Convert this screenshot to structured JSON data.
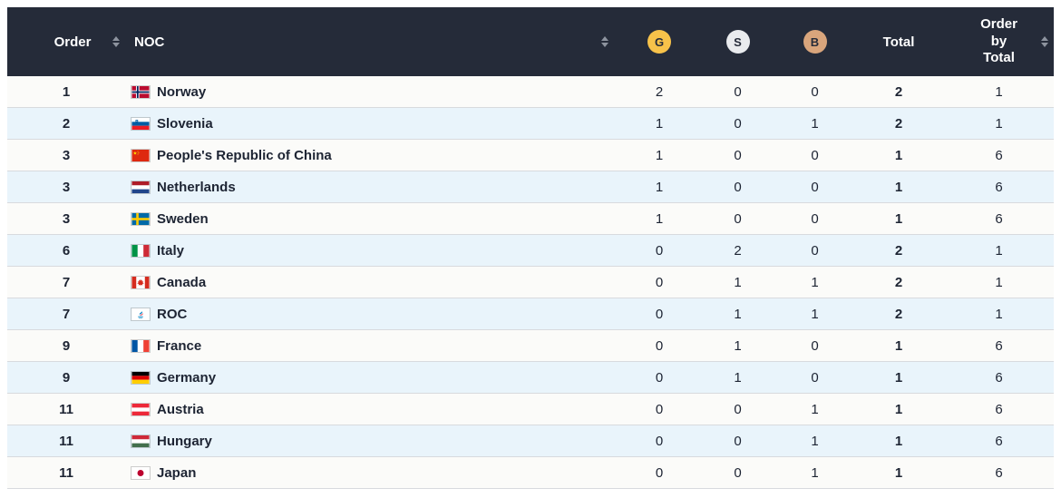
{
  "header": {
    "order": "Order",
    "noc": "NOC",
    "gold_badge": "G",
    "silver_badge": "S",
    "bronze_badge": "B",
    "total": "Total",
    "order_by_total": "Order by Total"
  },
  "colors": {
    "header_bg": "#252b39",
    "gold": "#f7c24a",
    "silver": "#e9ebee",
    "bronze": "#d9a57c",
    "row_alt": "#e9f4fb"
  },
  "rows": [
    {
      "order": "1",
      "noc": "Norway",
      "flag": "norway",
      "gold": "2",
      "silver": "0",
      "bronze": "0",
      "total": "2",
      "order_by_total": "1"
    },
    {
      "order": "2",
      "noc": "Slovenia",
      "flag": "slovenia",
      "gold": "1",
      "silver": "0",
      "bronze": "1",
      "total": "2",
      "order_by_total": "1"
    },
    {
      "order": "3",
      "noc": "People's Republic of China",
      "flag": "china",
      "gold": "1",
      "silver": "0",
      "bronze": "0",
      "total": "1",
      "order_by_total": "6"
    },
    {
      "order": "3",
      "noc": "Netherlands",
      "flag": "netherlands",
      "gold": "1",
      "silver": "0",
      "bronze": "0",
      "total": "1",
      "order_by_total": "6"
    },
    {
      "order": "3",
      "noc": "Sweden",
      "flag": "sweden",
      "gold": "1",
      "silver": "0",
      "bronze": "0",
      "total": "1",
      "order_by_total": "6"
    },
    {
      "order": "6",
      "noc": "Italy",
      "flag": "italy",
      "gold": "0",
      "silver": "2",
      "bronze": "0",
      "total": "2",
      "order_by_total": "1"
    },
    {
      "order": "7",
      "noc": "Canada",
      "flag": "canada",
      "gold": "0",
      "silver": "1",
      "bronze": "1",
      "total": "2",
      "order_by_total": "1"
    },
    {
      "order": "7",
      "noc": "ROC",
      "flag": "roc",
      "gold": "0",
      "silver": "1",
      "bronze": "1",
      "total": "2",
      "order_by_total": "1"
    },
    {
      "order": "9",
      "noc": "France",
      "flag": "france",
      "gold": "0",
      "silver": "1",
      "bronze": "0",
      "total": "1",
      "order_by_total": "6"
    },
    {
      "order": "9",
      "noc": "Germany",
      "flag": "germany",
      "gold": "0",
      "silver": "1",
      "bronze": "0",
      "total": "1",
      "order_by_total": "6"
    },
    {
      "order": "11",
      "noc": "Austria",
      "flag": "austria",
      "gold": "0",
      "silver": "0",
      "bronze": "1",
      "total": "1",
      "order_by_total": "6"
    },
    {
      "order": "11",
      "noc": "Hungary",
      "flag": "hungary",
      "gold": "0",
      "silver": "0",
      "bronze": "1",
      "total": "1",
      "order_by_total": "6"
    },
    {
      "order": "11",
      "noc": "Japan",
      "flag": "japan",
      "gold": "0",
      "silver": "0",
      "bronze": "1",
      "total": "1",
      "order_by_total": "6"
    }
  ]
}
